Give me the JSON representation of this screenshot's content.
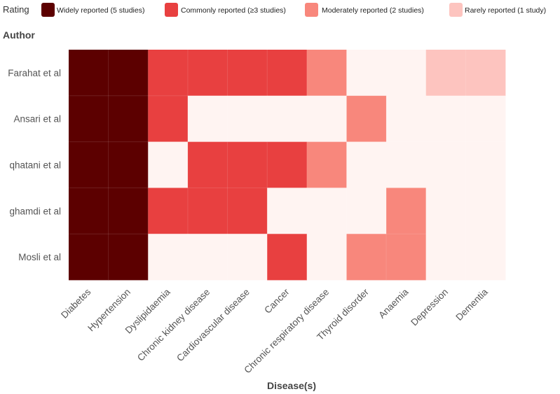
{
  "chart_data": {
    "type": "heatmap",
    "legend": {
      "title": "Rating",
      "items": [
        {
          "level": 4,
          "label": "Widely reported (5 studies)",
          "color": "#5c0000"
        },
        {
          "level": 3,
          "label": "Commonly reported (≥3 studies)",
          "color": "#e84040"
        },
        {
          "level": 2,
          "label": "Moderately reported (2 studies)",
          "color": "#f8877c"
        },
        {
          "level": 1,
          "label": "Rarely reported (1 study)",
          "color": "#fdc4bf"
        }
      ]
    },
    "empty_color": "#fff4f2",
    "ylabel": "Author",
    "xlabel": "Disease(s)",
    "rows": [
      "Farahat et al",
      "Ansari et al",
      "qhatani et al",
      "ghamdi et al",
      "Mosli et al"
    ],
    "columns": [
      "Diabetes",
      "Hypertension",
      "Dyslipidaemia",
      "Chronic kidney disease",
      "Cardiovascular disease",
      "Cancer",
      "Chronic respiratory disease",
      "Thyroid disorder",
      "Anaemia",
      "Depression",
      "Dementia"
    ],
    "values": [
      [
        4,
        4,
        3,
        3,
        3,
        3,
        2,
        0,
        0,
        1,
        1
      ],
      [
        4,
        4,
        3,
        0,
        0,
        0,
        0,
        2,
        0,
        0,
        0
      ],
      [
        4,
        4,
        0,
        3,
        3,
        3,
        2,
        0,
        0,
        0,
        0
      ],
      [
        4,
        4,
        3,
        3,
        3,
        0,
        0,
        0,
        2,
        0,
        0
      ],
      [
        4,
        4,
        0,
        0,
        0,
        3,
        0,
        2,
        2,
        0,
        0
      ]
    ]
  }
}
